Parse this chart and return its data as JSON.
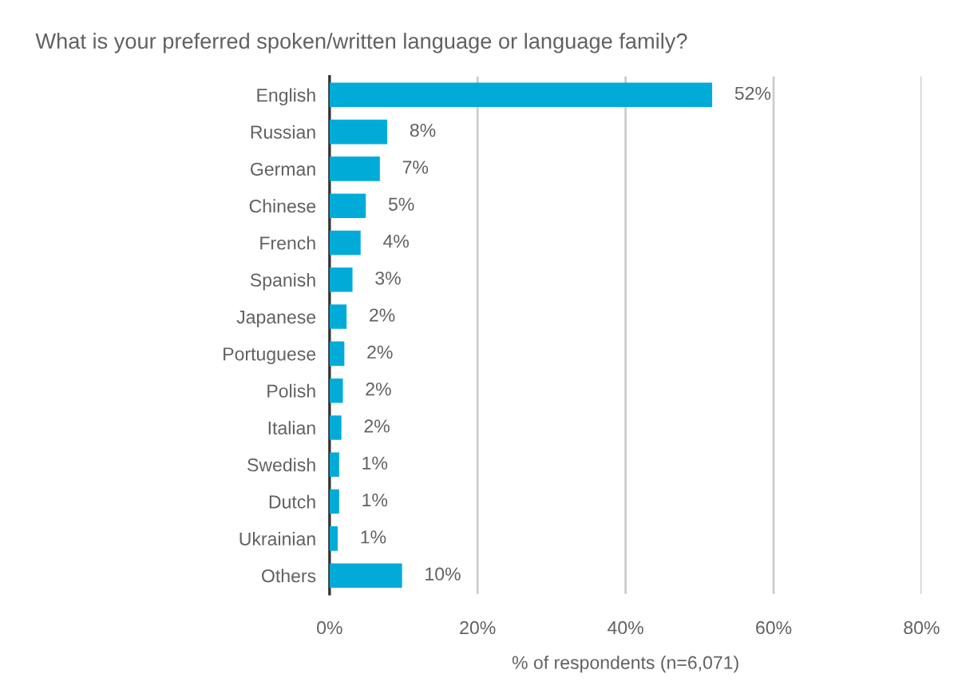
{
  "chart_data": {
    "type": "bar",
    "orientation": "horizontal",
    "title": "What is your preferred spoken/written language or language family?",
    "xlabel": "% of respondents (n=6,071)",
    "categories": [
      "English",
      "Russian",
      "German",
      "Chinese",
      "French",
      "Spanish",
      "Japanese",
      "Portuguese",
      "Polish",
      "Italian",
      "Swedish",
      "Dutch",
      "Ukrainian",
      "Others"
    ],
    "values": [
      51.7,
      7.8,
      6.8,
      4.9,
      4.2,
      3.1,
      2.3,
      2.0,
      1.8,
      1.6,
      1.3,
      1.3,
      1.1,
      9.8
    ],
    "value_labels": [
      "52%",
      "8%",
      "7%",
      "5%",
      "4%",
      "3%",
      "2%",
      "2%",
      "2%",
      "2%",
      "1%",
      "1%",
      "1%",
      "10%"
    ],
    "color": "#00acd7",
    "xlim": [
      0,
      80
    ],
    "xticks": [
      {
        "value": 0,
        "label": "0%"
      },
      {
        "value": 20,
        "label": "20%"
      },
      {
        "value": 40,
        "label": "40%"
      },
      {
        "value": 60,
        "label": "60%"
      },
      {
        "value": 80,
        "label": "80%"
      }
    ],
    "grid": "x"
  }
}
